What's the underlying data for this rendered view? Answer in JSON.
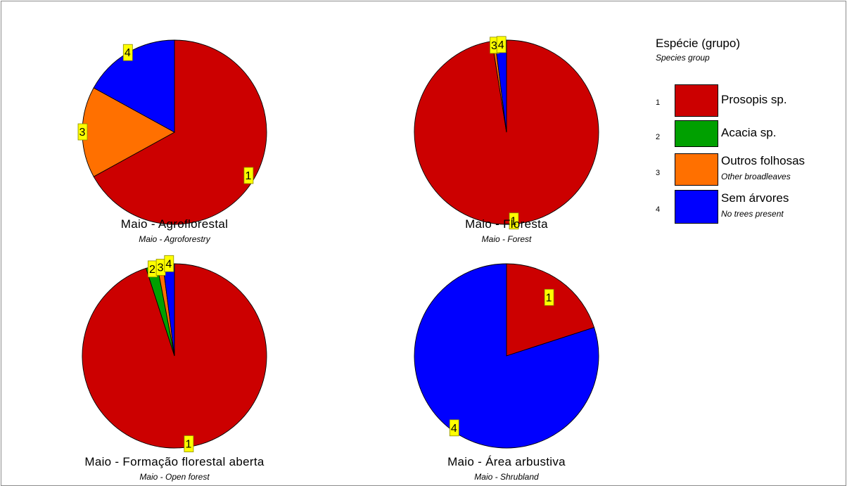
{
  "chart_data": [
    {
      "type": "pie",
      "title": "Maio - Agroflorestal",
      "subtitle": "Maio - Agroforestry",
      "slices": [
        {
          "id": "1",
          "value": 67
        },
        {
          "id": "2",
          "value": 0
        },
        {
          "id": "3",
          "value": 16
        },
        {
          "id": "4",
          "value": 17
        }
      ]
    },
    {
      "type": "pie",
      "title": "Maio - Floresta",
      "subtitle": "Maio - Forest",
      "slices": [
        {
          "id": "1",
          "value": 97.5
        },
        {
          "id": "2",
          "value": 0
        },
        {
          "id": "3",
          "value": 0.5
        },
        {
          "id": "4",
          "value": 2
        }
      ]
    },
    {
      "type": "pie",
      "title": "Maio - Formação florestal aberta",
      "subtitle": "Maio - Open forest",
      "slices": [
        {
          "id": "1",
          "value": 95
        },
        {
          "id": "2",
          "value": 2
        },
        {
          "id": "3",
          "value": 1
        },
        {
          "id": "4",
          "value": 2
        }
      ]
    },
    {
      "type": "pie",
      "title": "Maio - Área arbustiva",
      "subtitle": "Maio - Shrubland",
      "slices": [
        {
          "id": "1",
          "value": 20
        },
        {
          "id": "2",
          "value": 0
        },
        {
          "id": "3",
          "value": 0
        },
        {
          "id": "4",
          "value": 80
        }
      ]
    }
  ],
  "legend": {
    "title": "Espécie (grupo)",
    "subtitle": "Species group",
    "items": [
      {
        "num": "1",
        "label": "Prosopis sp.",
        "sublabel": "",
        "color": "#cc0000"
      },
      {
        "num": "2",
        "label": "Acacia sp.",
        "sublabel": "",
        "color": "#00a000"
      },
      {
        "num": "3",
        "label": "Outros folhosas",
        "sublabel": "Other broadleaves",
        "color": "#ff7000"
      },
      {
        "num": "4",
        "label": "Sem árvores",
        "sublabel": "No trees present",
        "color": "#0000ff"
      }
    ]
  }
}
